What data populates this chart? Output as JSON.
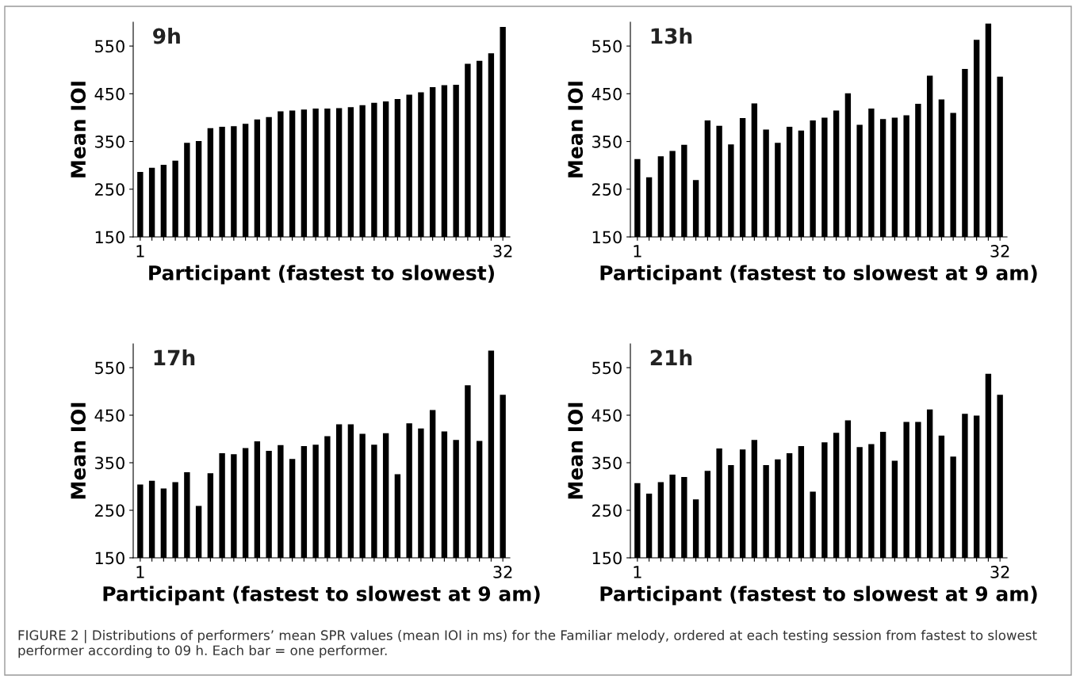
{
  "chart_data": [
    {
      "type": "bar",
      "title": "9h",
      "xlabel": "Participant (fastest to slowest)",
      "ylabel": "Mean IOI",
      "categories": [
        "1",
        null,
        null,
        null,
        null,
        null,
        null,
        null,
        null,
        null,
        null,
        null,
        null,
        null,
        null,
        null,
        null,
        null,
        null,
        null,
        null,
        null,
        null,
        null,
        null,
        null,
        null,
        null,
        null,
        null,
        null,
        "32"
      ],
      "color": "#000000",
      "values": [
        286,
        295,
        301,
        310,
        347,
        351,
        378,
        381,
        382,
        387,
        396,
        401,
        413,
        415,
        417,
        419,
        419,
        420,
        422,
        426,
        431,
        434,
        439,
        448,
        453,
        464,
        468,
        469,
        513,
        519,
        535,
        590
      ],
      "ylim": [
        150,
        600
      ],
      "yticks": [
        150,
        250,
        350,
        450,
        550
      ],
      "grid": false,
      "legend": false,
      "annotations": [
        "FIGURE 2 | Distributions of performers’ mean SPR values (mean IOI in ms) for the Familiar melody, ordered at each testing session from fastest to slowest performer according to 09 h. Each bar = one performer."
      ]
    },
    {
      "type": "bar",
      "title": "13h",
      "xlabel": "Participant (fastest to slowest at 9 am)",
      "ylabel": "Mean IOI",
      "categories": [
        "1",
        null,
        null,
        null,
        null,
        null,
        null,
        null,
        null,
        null,
        null,
        null,
        null,
        null,
        null,
        null,
        null,
        null,
        null,
        null,
        null,
        null,
        null,
        null,
        null,
        null,
        null,
        null,
        null,
        null,
        null,
        "32"
      ],
      "color": "#000000",
      "values": [
        313,
        275,
        319,
        330,
        343,
        269,
        394,
        383,
        344,
        399,
        430,
        375,
        347,
        381,
        373,
        394,
        400,
        415,
        451,
        385,
        419,
        397,
        400,
        405,
        429,
        488,
        438,
        410,
        502,
        563,
        597,
        486
      ],
      "ylim": [
        150,
        600
      ],
      "yticks": [
        150,
        250,
        350,
        450,
        550
      ],
      "grid": false,
      "legend": false
    },
    {
      "type": "bar",
      "title": "17h",
      "xlabel": "Participant (fastest to slowest at 9 am)",
      "ylabel": "Mean IOI",
      "categories": [
        "1",
        null,
        null,
        null,
        null,
        null,
        null,
        null,
        null,
        null,
        null,
        null,
        null,
        null,
        null,
        null,
        null,
        null,
        null,
        null,
        null,
        null,
        null,
        null,
        null,
        null,
        null,
        null,
        null,
        null,
        null,
        "32"
      ],
      "color": "#000000",
      "values": [
        304,
        312,
        296,
        309,
        330,
        259,
        328,
        370,
        368,
        381,
        395,
        375,
        387,
        358,
        385,
        388,
        406,
        431,
        431,
        411,
        388,
        412,
        326,
        433,
        422,
        461,
        416,
        398,
        513,
        396,
        586,
        493
      ],
      "ylim": [
        150,
        600
      ],
      "yticks": [
        150,
        250,
        350,
        450,
        550
      ],
      "grid": false,
      "legend": false
    },
    {
      "type": "bar",
      "title": "21h",
      "xlabel": "Participant (fastest to slowest at 9 am)",
      "ylabel": "Mean IOI",
      "categories": [
        "1",
        null,
        null,
        null,
        null,
        null,
        null,
        null,
        null,
        null,
        null,
        null,
        null,
        null,
        null,
        null,
        null,
        null,
        null,
        null,
        null,
        null,
        null,
        null,
        null,
        null,
        null,
        null,
        null,
        null,
        null,
        "32"
      ],
      "color": "#000000",
      "values": [
        307,
        285,
        309,
        325,
        320,
        273,
        333,
        380,
        345,
        378,
        398,
        345,
        357,
        370,
        385,
        289,
        393,
        413,
        439,
        383,
        389,
        415,
        354,
        436,
        436,
        462,
        407,
        363,
        453,
        449,
        537,
        493
      ],
      "ylim": [
        150,
        600
      ],
      "yticks": [
        150,
        250,
        350,
        450,
        550
      ],
      "grid": false,
      "legend": false
    }
  ]
}
